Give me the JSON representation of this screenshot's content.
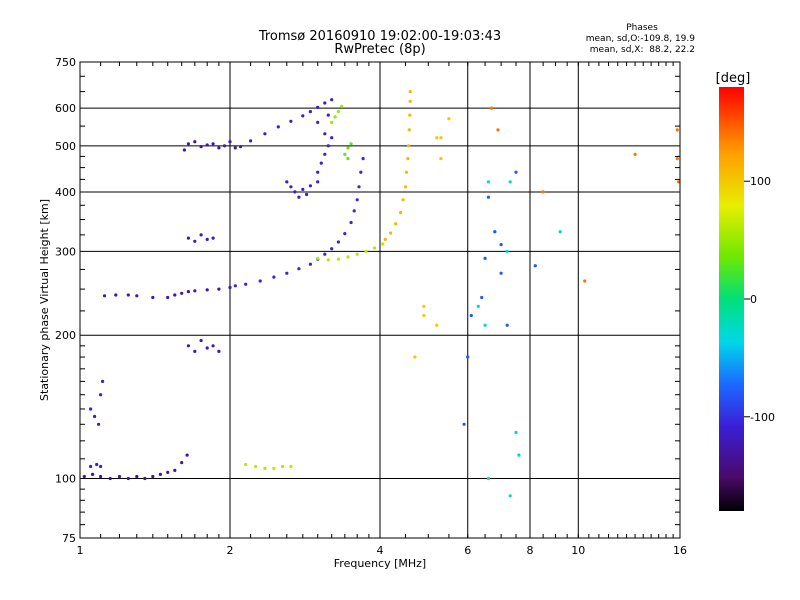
{
  "chart_data": {
    "type": "scatter",
    "title": "Tromsø 20160910 19:02:00-19:03:43",
    "subtitle": "RwPretec (8p)",
    "xlabel": "Frequency [MHz]",
    "ylabel": "Stationary phase Virtual Height [km]",
    "x_scale": "log2",
    "y_scale": "log",
    "xlim": [
      1,
      16
    ],
    "ylim": [
      75,
      750
    ],
    "x_ticks": [
      1,
      2,
      4,
      6,
      8,
      10,
      16
    ],
    "y_ticks": [
      75,
      100,
      200,
      300,
      400,
      500,
      600,
      750
    ],
    "grid": true,
    "stats": {
      "heading": "Phases",
      "line1": "mean, sd,O:-109.8, 19.9",
      "line2": "mean, sd,X:  88.2, 22.2"
    },
    "colorbar": {
      "label": "[deg]",
      "ticks": [
        100,
        0,
        -100
      ],
      "range": [
        -180,
        180
      ],
      "placement": "right"
    },
    "series": [
      {
        "phase": -130,
        "points": [
          [
            1.02,
            101
          ],
          [
            1.06,
            102
          ],
          [
            1.1,
            101
          ],
          [
            1.15,
            100
          ],
          [
            1.2,
            101
          ],
          [
            1.25,
            100
          ],
          [
            1.3,
            101
          ],
          [
            1.35,
            100
          ],
          [
            1.4,
            101
          ],
          [
            1.45,
            102
          ],
          [
            1.5,
            103
          ],
          [
            1.55,
            104
          ],
          [
            1.6,
            108
          ],
          [
            1.64,
            112
          ]
        ]
      },
      {
        "phase": -110,
        "points": [
          [
            1.05,
            106
          ],
          [
            1.08,
            107
          ],
          [
            1.1,
            106
          ],
          [
            1.05,
            140
          ],
          [
            1.07,
            135
          ],
          [
            1.09,
            130
          ],
          [
            1.1,
            150
          ],
          [
            1.11,
            160
          ]
        ]
      },
      {
        "phase": -125,
        "points": [
          [
            1.12,
            242
          ],
          [
            1.18,
            243
          ],
          [
            1.25,
            243
          ],
          [
            1.3,
            242
          ],
          [
            1.4,
            240
          ],
          [
            1.5,
            240
          ],
          [
            1.55,
            243
          ],
          [
            1.6,
            245
          ],
          [
            1.65,
            247
          ],
          [
            1.7,
            248
          ],
          [
            1.8,
            249
          ],
          [
            1.9,
            250
          ],
          [
            2.0,
            252
          ]
        ]
      },
      {
        "phase": -105,
        "points": [
          [
            2.05,
            254
          ],
          [
            2.15,
            256
          ],
          [
            2.3,
            260
          ],
          [
            2.45,
            265
          ],
          [
            2.6,
            270
          ],
          [
            2.75,
            276
          ],
          [
            2.9,
            282
          ],
          [
            3.0,
            289
          ],
          [
            3.1,
            296
          ],
          [
            3.2,
            304
          ],
          [
            3.3,
            314
          ],
          [
            3.4,
            327
          ],
          [
            3.5,
            345
          ],
          [
            3.55,
            365
          ],
          [
            3.6,
            385
          ],
          [
            3.63,
            410
          ],
          [
            3.66,
            440
          ],
          [
            3.7,
            470
          ]
        ]
      },
      {
        "phase": -115,
        "points": [
          [
            2.1,
            498
          ],
          [
            2.2,
            512
          ],
          [
            2.35,
            530
          ],
          [
            2.5,
            548
          ],
          [
            2.65,
            563
          ],
          [
            2.8,
            578
          ],
          [
            2.9,
            590
          ],
          [
            3.0,
            602
          ],
          [
            3.1,
            615
          ],
          [
            3.2,
            625
          ]
        ]
      },
      {
        "phase": -125,
        "points": [
          [
            1.62,
            490
          ],
          [
            1.65,
            505
          ],
          [
            1.7,
            510
          ],
          [
            1.75,
            498
          ],
          [
            1.8,
            502
          ],
          [
            1.85,
            505
          ],
          [
            1.9,
            495
          ],
          [
            1.95,
            500
          ],
          [
            2.0,
            510
          ],
          [
            2.05,
            495
          ]
        ]
      },
      {
        "phase": -120,
        "points": [
          [
            1.65,
            320
          ],
          [
            1.7,
            315
          ],
          [
            1.75,
            325
          ],
          [
            1.8,
            318
          ],
          [
            1.85,
            320
          ],
          [
            1.65,
            190
          ],
          [
            1.7,
            185
          ],
          [
            1.75,
            195
          ],
          [
            1.8,
            188
          ],
          [
            1.85,
            190
          ],
          [
            1.9,
            185
          ]
        ]
      },
      {
        "phase": -112,
        "points": [
          [
            2.6,
            420
          ],
          [
            2.7,
            400
          ],
          [
            2.8,
            405
          ],
          [
            2.9,
            412
          ],
          [
            3.0,
            420
          ],
          [
            2.75,
            390
          ],
          [
            2.85,
            395
          ],
          [
            2.65,
            410
          ]
        ]
      },
      {
        "phase": -110,
        "points": [
          [
            3.0,
            440
          ],
          [
            3.05,
            460
          ],
          [
            3.1,
            480
          ],
          [
            3.15,
            500
          ],
          [
            3.2,
            520
          ],
          [
            3.1,
            530
          ],
          [
            3.0,
            560
          ],
          [
            3.15,
            580
          ]
        ]
      },
      {
        "phase": 60,
        "points": [
          [
            3.0,
            290
          ],
          [
            3.15,
            288
          ],
          [
            3.3,
            289
          ],
          [
            3.45,
            292
          ],
          [
            3.6,
            296
          ],
          [
            3.75,
            300
          ],
          [
            3.9,
            305
          ],
          [
            4.05,
            311
          ]
        ]
      },
      {
        "phase": 110,
        "points": [
          [
            4.1,
            318
          ],
          [
            4.2,
            328
          ],
          [
            4.3,
            343
          ],
          [
            4.4,
            362
          ],
          [
            4.45,
            385
          ],
          [
            4.5,
            410
          ],
          [
            4.52,
            440
          ],
          [
            4.55,
            470
          ],
          [
            4.57,
            500
          ],
          [
            4.58,
            540
          ],
          [
            4.59,
            580
          ],
          [
            4.6,
            620
          ],
          [
            4.6,
            650
          ]
        ]
      },
      {
        "phase": 50,
        "points": [
          [
            3.2,
            560
          ],
          [
            3.25,
            575
          ],
          [
            3.3,
            590
          ],
          [
            3.35,
            605
          ]
        ]
      },
      {
        "phase": 30,
        "points": [
          [
            3.4,
            480
          ],
          [
            3.45,
            495
          ],
          [
            3.5,
            505
          ],
          [
            3.45,
            470
          ]
        ]
      },
      {
        "phase": 60,
        "points": [
          [
            2.15,
            107
          ],
          [
            2.25,
            106
          ],
          [
            2.35,
            105
          ],
          [
            2.45,
            105
          ],
          [
            2.55,
            106
          ],
          [
            2.65,
            106
          ]
        ]
      },
      {
        "phase": 100,
        "points": [
          [
            4.9,
            230
          ],
          [
            4.9,
            220
          ],
          [
            5.2,
            520
          ],
          [
            5.3,
            520
          ],
          [
            5.3,
            470
          ],
          [
            4.7,
            180
          ],
          [
            5.2,
            210
          ],
          [
            5.5,
            570
          ]
        ]
      },
      {
        "phase": -20,
        "points": [
          [
            6.3,
            230
          ],
          [
            6.5,
            210
          ],
          [
            6.6,
            420
          ],
          [
            6.8,
            330
          ],
          [
            7.2,
            300
          ],
          [
            7.3,
            420
          ],
          [
            7.5,
            125
          ],
          [
            7.6,
            112
          ],
          [
            7.3,
            92
          ],
          [
            6.6,
            100
          ],
          [
            9.2,
            330
          ]
        ]
      },
      {
        "phase": -80,
        "points": [
          [
            5.9,
            130
          ],
          [
            6.0,
            180
          ],
          [
            6.1,
            220
          ],
          [
            6.4,
            240
          ],
          [
            6.5,
            290
          ],
          [
            6.6,
            390
          ],
          [
            6.8,
            330
          ],
          [
            7.0,
            310
          ],
          [
            7.2,
            210
          ],
          [
            7.0,
            270
          ],
          [
            7.5,
            440
          ],
          [
            8.2,
            280
          ]
        ]
      },
      {
        "phase": 140,
        "points": [
          [
            6.7,
            600
          ],
          [
            6.9,
            540
          ],
          [
            8.5,
            400
          ],
          [
            10.3,
            260
          ],
          [
            13.0,
            480
          ],
          [
            15.8,
            540
          ],
          [
            15.8,
            470
          ],
          [
            15.9,
            420
          ]
        ]
      }
    ]
  }
}
